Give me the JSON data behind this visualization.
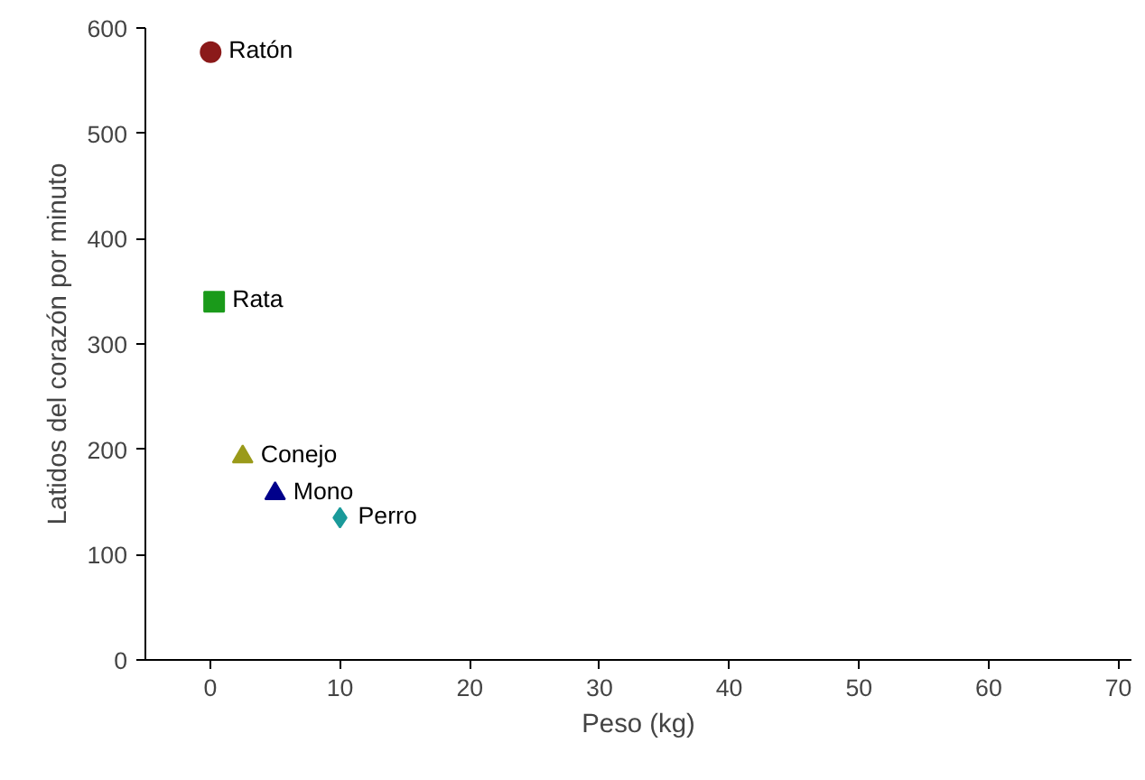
{
  "chart_data": {
    "type": "scatter",
    "xlabel": "Peso (kg)",
    "ylabel": "Latidos del corazón por minuto",
    "xlim": [
      -5,
      71
    ],
    "xticks": [
      0,
      10,
      20,
      30,
      40,
      50,
      60,
      70
    ],
    "ylim": [
      0,
      600
    ],
    "yticks": [
      0,
      100,
      200,
      300,
      400,
      500,
      600
    ],
    "grid": false,
    "legend": false,
    "series": [
      {
        "name": "Ratón",
        "color": "#8b1a1a",
        "marker": "circle",
        "x": [
          0.03
        ],
        "values": [
          577
        ]
      },
      {
        "name": "Rata",
        "color": "#1a9a1a",
        "marker": "square",
        "x": [
          0.3
        ],
        "values": [
          340
        ]
      },
      {
        "name": "Conejo",
        "color": "#9a9a1a",
        "marker": "triangle",
        "x": [
          2.5
        ],
        "values": [
          193
        ]
      },
      {
        "name": "Mono",
        "color": "#00008b",
        "marker": "triangle",
        "x": [
          5
        ],
        "values": [
          158
        ]
      },
      {
        "name": "Perro",
        "color": "#1a9a9a",
        "marker": "diamond",
        "x": [
          10
        ],
        "values": [
          135
        ]
      }
    ]
  }
}
